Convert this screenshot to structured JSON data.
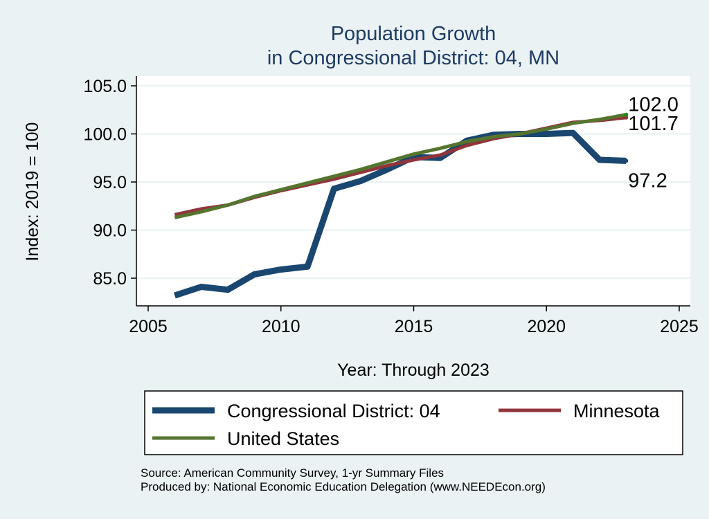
{
  "chart_data": {
    "type": "line",
    "title": [
      "Population Growth",
      "in Congressional District: 04, MN"
    ],
    "xlabel": "Year: Through 2023",
    "ylabel": "Index: 2019 = 100",
    "xlim": [
      2005,
      2025
    ],
    "ylim": [
      82.5,
      105.5
    ],
    "xticks": [
      2005,
      2010,
      2015,
      2020,
      2025
    ],
    "yticks": [
      85,
      90,
      95,
      100,
      105
    ],
    "ytick_labels": [
      "85.0",
      "90.0",
      "95.0",
      "100.0",
      "105.0"
    ],
    "grid": true,
    "x": [
      2006,
      2007,
      2008,
      2009,
      2010,
      2011,
      2012,
      2013,
      2014,
      2015,
      2016,
      2017,
      2018,
      2019,
      2020,
      2021,
      2022,
      2023
    ],
    "series": [
      {
        "name": "Congressional District: 04",
        "color": "#1a476f",
        "width": 9,
        "values": [
          83.2,
          84.1,
          83.8,
          85.4,
          85.9,
          86.2,
          94.3,
          95.1,
          96.3,
          97.6,
          97.5,
          99.3,
          99.9,
          100.0,
          100.0,
          100.1,
          97.3,
          97.2
        ],
        "end_label": "97.2"
      },
      {
        "name": "Minnesota",
        "color": "#90353b",
        "width": 5,
        "values": [
          91.6,
          92.2,
          92.6,
          93.4,
          94.1,
          94.7,
          95.3,
          96.0,
          96.7,
          97.3,
          97.8,
          98.8,
          99.5,
          100.0,
          100.6,
          101.2,
          101.4,
          101.7
        ],
        "end_label": "101.7"
      },
      {
        "name": "United States",
        "color": "#55752f",
        "width": 5,
        "values": [
          91.3,
          91.9,
          92.6,
          93.5,
          94.2,
          94.9,
          95.6,
          96.3,
          97.1,
          97.9,
          98.5,
          99.2,
          99.7,
          100.0,
          100.5,
          101.1,
          101.5,
          102.0
        ],
        "end_label": "102.0"
      }
    ],
    "legend": "bottom",
    "notes": [
      "Source: American Community Survey, 1-yr Summary Files",
      "Produced by: National Economic Education Delegation (www.NEEDEcon.org)"
    ]
  }
}
